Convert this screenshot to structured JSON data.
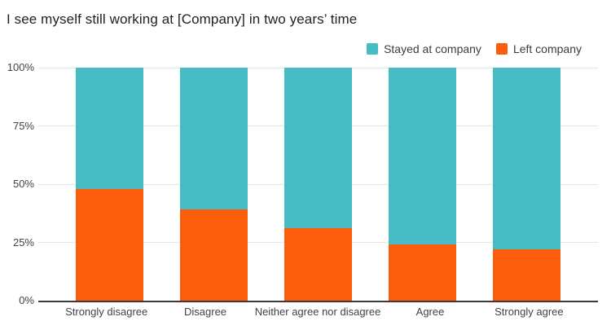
{
  "title": "I see myself still working at [Company] in two years’ time",
  "chart_data": {
    "type": "bar",
    "stacked": true,
    "title": "I see myself still working at [Company] in two years’ time",
    "categories": [
      "Strongly disagree",
      "Disagree",
      "Neither agree nor disagree",
      "Agree",
      "Strongly agree"
    ],
    "series": [
      {
        "name": "Stayed at company",
        "color": "#47BCC5",
        "values": [
          52,
          61,
          69,
          76,
          78
        ]
      },
      {
        "name": "Left company",
        "color": "#FB5D0C",
        "values": [
          48,
          39,
          31,
          24,
          22
        ]
      }
    ],
    "unit": "%",
    "xlabel": "",
    "ylabel": "",
    "ylim": [
      0,
      100
    ],
    "y_ticks": [
      "0%",
      "25%",
      "50%",
      "75%",
      "100%"
    ],
    "grid": true,
    "legend_position": "top-right"
  },
  "style": {
    "background": "#FFFFFF",
    "title_color": "#212121",
    "tick_label_color": "#424242",
    "gridline_color": "#E6E6E6",
    "axis_line_color": "#3B3B3B"
  }
}
